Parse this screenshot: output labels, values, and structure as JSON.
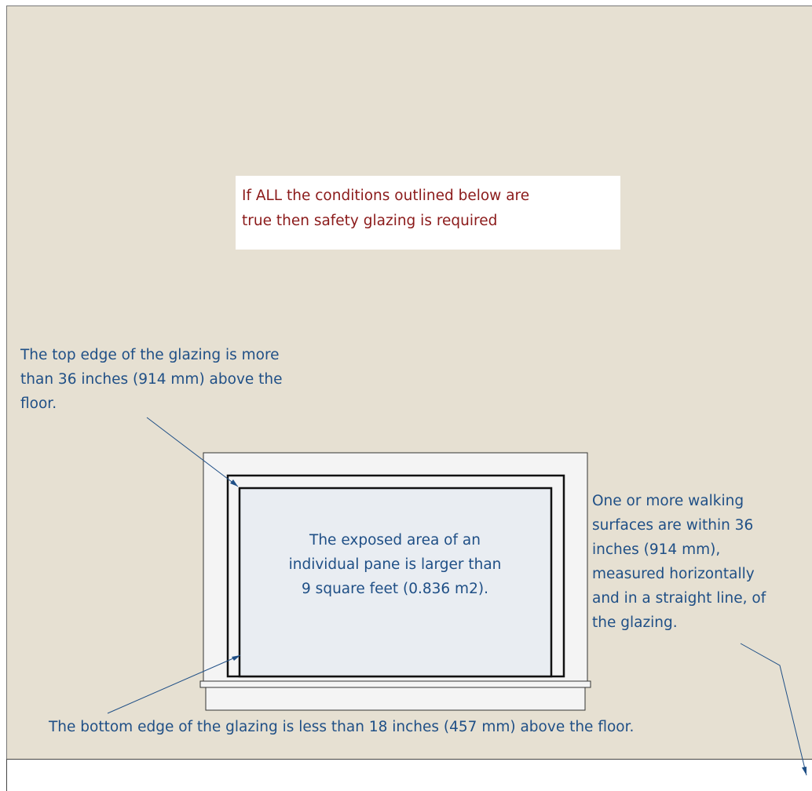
{
  "notice": {
    "lines": [
      "If ALL the conditions outlined below are",
      "true then safety glazing is required"
    ]
  },
  "annotations": {
    "top_edge": {
      "lines": [
        "The top edge of the glazing is more",
        "than 36 inches (914 mm) above the",
        "floor."
      ]
    },
    "pane_area": {
      "lines": [
        "The exposed area of an",
        "individual pane is larger than",
        "9 square feet (0.836 m2)."
      ]
    },
    "walking_surfaces": {
      "lines": [
        "One or more walking",
        "surfaces are within 36",
        "inches (914 mm),",
        "measured horizontally",
        "and in a straight line, of",
        "the glazing."
      ]
    },
    "bottom_edge": {
      "lines": [
        "The bottom edge of the glazing is less than 18 inches (457 mm) above the floor."
      ]
    }
  },
  "colors": {
    "wall": "#e6e0d2",
    "notice_text": "#8b1a1a",
    "annotation_text": "#1f4f86",
    "window_frame": "#f4f4f4",
    "glass": "#e9edf2"
  }
}
